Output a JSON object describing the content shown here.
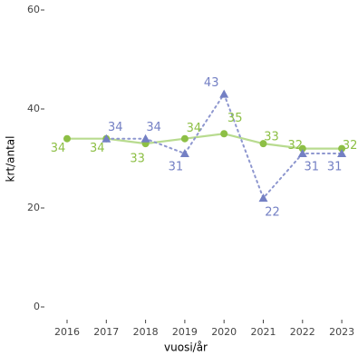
{
  "chart_data": {
    "type": "line",
    "categories": [
      "2016",
      "2017",
      "2018",
      "2019",
      "2020",
      "2021",
      "2022",
      "2023"
    ],
    "x_label": "vuosi/år",
    "y_label": "krt/antal",
    "series": [
      {
        "color": "#8dbf45",
        "line_color": "#b8db8f",
        "marker": "circle",
        "dash": "solid",
        "values": [
          34,
          34,
          33,
          34,
          35,
          33,
          32,
          32
        ]
      },
      {
        "color": "#7480c4",
        "line_color": "#8e97cf",
        "marker": "triangle",
        "dash": "dotted",
        "values": [
          null,
          34,
          34,
          31,
          43,
          22,
          31,
          31
        ]
      }
    ],
    "ylim": [
      0,
      60
    ],
    "yticks": [
      0,
      20,
      40,
      60
    ],
    "grid": false
  }
}
